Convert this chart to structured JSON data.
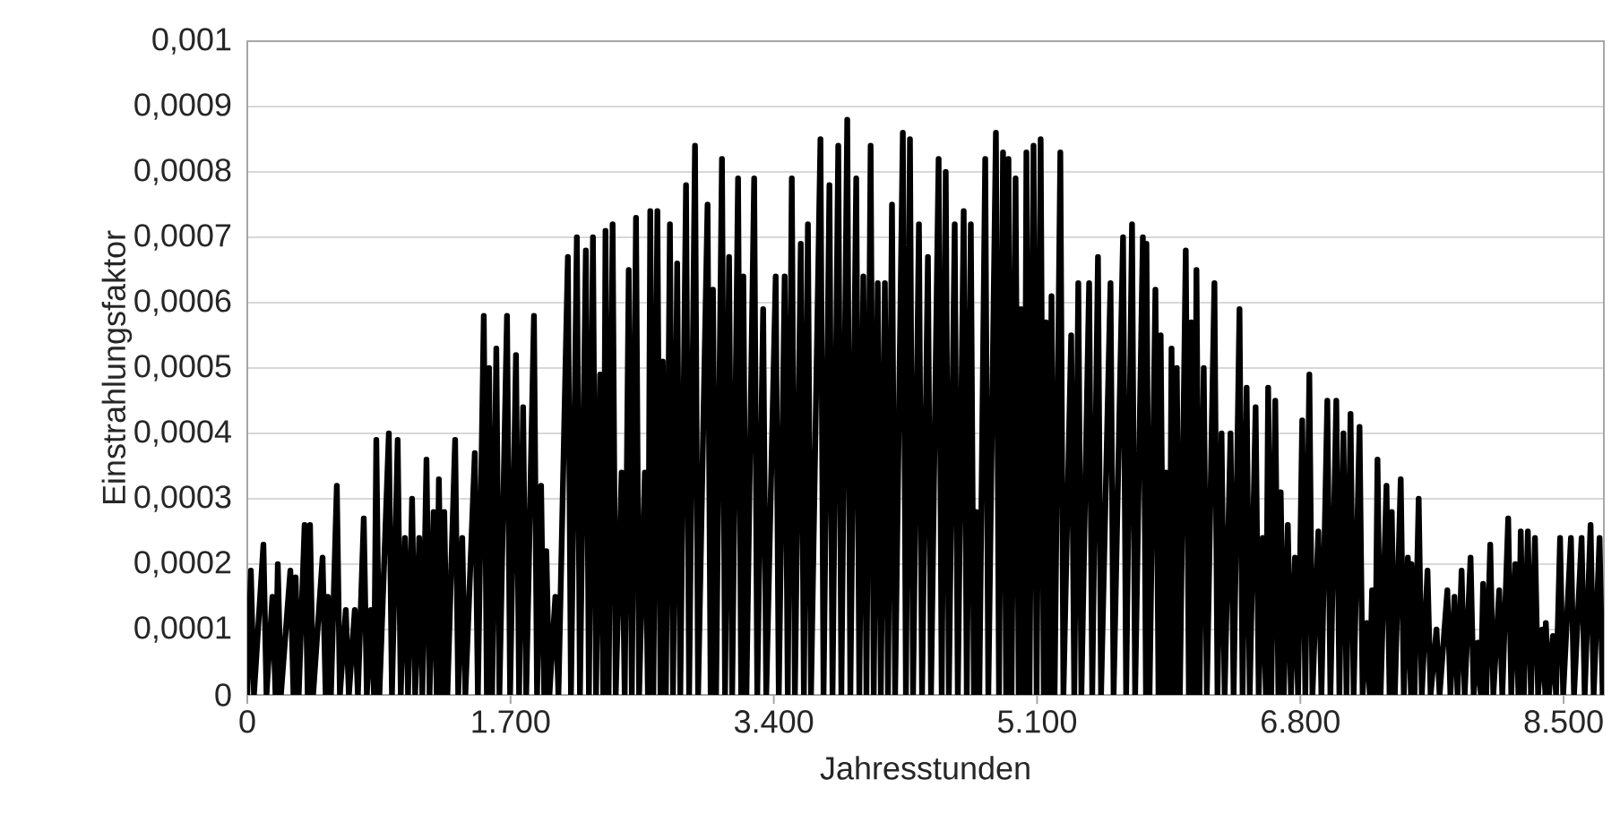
{
  "chart_data": {
    "type": "line",
    "xlabel": "Jahresstunden",
    "ylabel": "Einstrahlungsfaktor",
    "xlim": [
      0,
      8760
    ],
    "ylim": [
      0,
      0.001
    ],
    "xticks": [
      {
        "value": 0,
        "label": "0"
      },
      {
        "value": 1700,
        "label": "1.700"
      },
      {
        "value": 3400,
        "label": "3.400"
      },
      {
        "value": 5100,
        "label": "5.100"
      },
      {
        "value": 6800,
        "label": "6.800"
      },
      {
        "value": 8500,
        "label": "8.500"
      }
    ],
    "yticks": [
      {
        "value": 0,
        "label": "0"
      },
      {
        "value": 0.0001,
        "label": "0,0001"
      },
      {
        "value": 0.0002,
        "label": "0,0002"
      },
      {
        "value": 0.0003,
        "label": "0,0003"
      },
      {
        "value": 0.0004,
        "label": "0,0004"
      },
      {
        "value": 0.0005,
        "label": "0,0005"
      },
      {
        "value": 0.0006,
        "label": "0,0006"
      },
      {
        "value": 0.0007,
        "label": "0,0007"
      },
      {
        "value": 0.0008,
        "label": "0,0008"
      },
      {
        "value": 0.0009,
        "label": "0,0009"
      },
      {
        "value": 0.001,
        "label": "0,001"
      }
    ],
    "grid": "y",
    "legend": false,
    "marker": "none",
    "line_style": "solid",
    "series": [
      {
        "color": "#000000",
        "x": [
          0,
          23,
          43,
          104,
          124,
          162,
          182,
          197,
          217,
          278,
          298,
          312,
          332,
          370,
          390,
          405,
          425,
          486,
          506,
          520,
          540,
          578,
          598,
          636,
          656,
          694,
          714,
          752,
          772,
          798,
          818,
          833,
          853,
          914,
          934,
          971,
          991,
          1018,
          1038,
          1064,
          1084,
          1110,
          1130,
          1157,
          1177,
          1203,
          1223,
          1237,
          1257,
          1272,
          1292,
          1342,
          1362,
          1388,
          1408,
          1469,
          1489,
          1527,
          1547,
          1561,
          1581,
          1608,
          1628,
          1677,
          1697,
          1735,
          1755,
          1781,
          1801,
          1851,
          1871,
          1897,
          1917,
          1931,
          1951,
          1989,
          2009,
          2070,
          2090,
          2128,
          2148,
          2186,
          2206,
          2232,
          2252,
          2278,
          2298,
          2313,
          2333,
          2359,
          2379,
          2417,
          2437,
          2463,
          2483,
          2510,
          2530,
          2567,
          2587,
          2602,
          2622,
          2648,
          2668,
          2683,
          2703,
          2729,
          2749,
          2776,
          2796,
          2833,
          2853,
          2891,
          2911,
          2972,
          2992,
          3007,
          3027,
          3065,
          3085,
          3111,
          3131,
          3169,
          3189,
          3203,
          3223,
          3273,
          3293,
          3331,
          3351,
          3412,
          3432,
          3470,
          3490,
          3516,
          3536,
          3574,
          3594,
          3620,
          3640,
          3701,
          3721,
          3759,
          3779,
          3816,
          3836,
          3874,
          3894,
          3932,
          3952,
          3978,
          3998,
          4025,
          4045,
          4071,
          4091,
          4117,
          4137,
          4163,
          4183,
          4233,
          4253,
          4279,
          4299,
          4337,
          4357,
          4395,
          4415,
          4464,
          4484,
          4510,
          4530,
          4568,
          4588,
          4626,
          4646,
          4672,
          4692,
          4707,
          4727,
          4765,
          4785,
          4834,
          4854,
          4880,
          4900,
          4915,
          4935,
          4961,
          4981,
          4996,
          5016,
          5031,
          5051,
          5077,
          5097,
          5123,
          5143,
          5158,
          5178,
          5193,
          5213,
          5250,
          5270,
          5320,
          5340,
          5366,
          5386,
          5436,
          5456,
          5493,
          5513,
          5574,
          5594,
          5655,
          5675,
          5713,
          5733,
          5783,
          5803,
          5806,
          5826,
          5864,
          5884,
          5898,
          5918,
          5933,
          5953,
          5968,
          5988,
          6002,
          6022,
          6060,
          6080,
          6095,
          6115,
          6129,
          6149,
          6176,
          6196,
          6245,
          6265,
          6291,
          6311,
          6349,
          6369,
          6407,
          6427,
          6453,
          6473,
          6511,
          6531,
          6557,
          6577,
          6592,
          6612,
          6638,
          6658,
          6673,
          6693,
          6719,
          6739,
          6765,
          6785,
          6812,
          6832,
          6858,
          6878,
          6916,
          6936,
          6974,
          6994,
          7032,
          7052,
          7078,
          7098,
          7124,
          7144,
          7182,
          7202,
          7228,
          7248,
          7263,
          7283,
          7298,
          7318,
          7356,
          7376,
          7390,
          7410,
          7448,
          7468,
          7494,
          7514,
          7517,
          7537,
          7564,
          7584,
          7621,
          7641,
          7679,
          7699,
          7749,
          7769,
          7795,
          7815,
          7841,
          7861,
          7899,
          7919,
          7945,
          7965,
          7980,
          8000,
          8026,
          8046,
          8084,
          8104,
          8142,
          8162,
          8188,
          8208,
          8223,
          8243,
          8269,
          8289,
          8315,
          8335,
          8362,
          8382,
          8385,
          8405,
          8431,
          8451,
          8477,
          8497,
          8547,
          8567,
          8616,
          8636,
          8674,
          8694,
          8732,
          8752
        ],
        "values": [
          0,
          0.00019,
          0,
          0.00023,
          0,
          0.00015,
          0,
          0.0002,
          0,
          0.00019,
          0,
          0.00018,
          0,
          0.00026,
          0,
          0.00026,
          0,
          0.00021,
          0,
          0.00015,
          0,
          0.00032,
          0,
          0.00013,
          0,
          0.00013,
          0,
          0.00027,
          0,
          0.00013,
          0,
          0.00039,
          0,
          0.0004,
          0,
          0.00039,
          0,
          0.00024,
          0,
          0.0003,
          0,
          0.00024,
          0,
          0.00036,
          0,
          0.00028,
          0,
          0.00033,
          0,
          0.00028,
          0,
          0.00039,
          0,
          0.00024,
          0,
          0.00037,
          0,
          0.00058,
          0,
          0.0005,
          0,
          0.00053,
          0,
          0.00058,
          0,
          0.00052,
          0,
          0.00044,
          0,
          0.00058,
          0,
          0.00032,
          0,
          0.00022,
          0,
          0.00015,
          0,
          0.00067,
          0,
          0.0007,
          0,
          0.00068,
          0,
          0.0007,
          0,
          0.00049,
          0,
          0.00071,
          0,
          0.00072,
          0,
          0.00034,
          0,
          0.00065,
          0,
          0.00073,
          0,
          0.00034,
          0,
          0.00074,
          0,
          0.00074,
          0,
          0.00051,
          0,
          0.00072,
          0,
          0.00066,
          0,
          0.00078,
          0,
          0.00084,
          0,
          0.00075,
          0,
          0.00062,
          0,
          0.00082,
          0,
          0.00067,
          0,
          0.00079,
          0,
          0.00064,
          0,
          0.00079,
          0,
          0.00059,
          0,
          0.00064,
          0,
          0.00064,
          0,
          0.00079,
          0,
          0.00069,
          0,
          0.00072,
          0,
          0.00085,
          0,
          0.00078,
          0,
          0.00084,
          0,
          0.00088,
          0,
          0.00079,
          0,
          0.00064,
          0,
          0.00084,
          0,
          0.00063,
          0,
          0.00063,
          0,
          0.00075,
          0,
          0.00086,
          0,
          0.00085,
          0,
          0.00072,
          0,
          0.00067,
          0,
          0.00082,
          0,
          0.0008,
          0,
          0.00072,
          0,
          0.00074,
          0,
          0.00072,
          0,
          0.00028,
          0,
          0.00082,
          0,
          0.00086,
          0,
          0.00083,
          0,
          0.00082,
          0,
          0.00079,
          0,
          0.00059,
          0,
          0.00083,
          0,
          0.00084,
          0,
          0.00085,
          0,
          0.00057,
          0,
          0.00061,
          0,
          0.00083,
          0,
          0.00055,
          0,
          0.00063,
          0,
          0.00063,
          0,
          0.00067,
          0,
          0.00063,
          0,
          0.0007,
          0,
          0.00072,
          0,
          0.0007,
          0,
          0.00069,
          0,
          0.00062,
          0,
          0.00055,
          0,
          0.00034,
          0,
          0.00053,
          0,
          0.0005,
          0,
          0.00068,
          0,
          0.00057,
          0,
          0.00065,
          0,
          0.0005,
          0,
          0.00063,
          0,
          0.0004,
          0,
          0.0004,
          0,
          0.00059,
          0,
          0.00047,
          0,
          0.00044,
          0,
          0.00024,
          0,
          0.00047,
          0,
          0.00045,
          0,
          0.00031,
          0,
          0.00026,
          0,
          0.00021,
          0,
          0.00042,
          0,
          0.00049,
          0,
          0.00025,
          0,
          0.00045,
          0,
          0.00045,
          0,
          0.0004,
          0,
          0.00043,
          0,
          0.00041,
          0,
          0.00011,
          0,
          0.00016,
          0,
          0.00036,
          0,
          0.00032,
          0,
          0.00028,
          0,
          0.00033,
          0,
          0.00021,
          0,
          0.0002,
          0,
          0.0003,
          0,
          0.00019,
          0,
          0.0001,
          0,
          0.00016,
          0,
          0.00015,
          0,
          0.00019,
          0,
          0.00021,
          0,
          8e-05,
          0,
          0.00017,
          0,
          0.00023,
          0,
          0.00016,
          0,
          0.00027,
          0,
          0.0002,
          0,
          0.00025,
          0,
          0.00025,
          0,
          0.00024,
          0,
          0.0001,
          0,
          0.00011,
          0,
          9e-05,
          0,
          0.00024,
          0,
          0.00024,
          0,
          0.00024,
          0,
          0.00026,
          0,
          0.00024,
          0
        ]
      }
    ]
  }
}
